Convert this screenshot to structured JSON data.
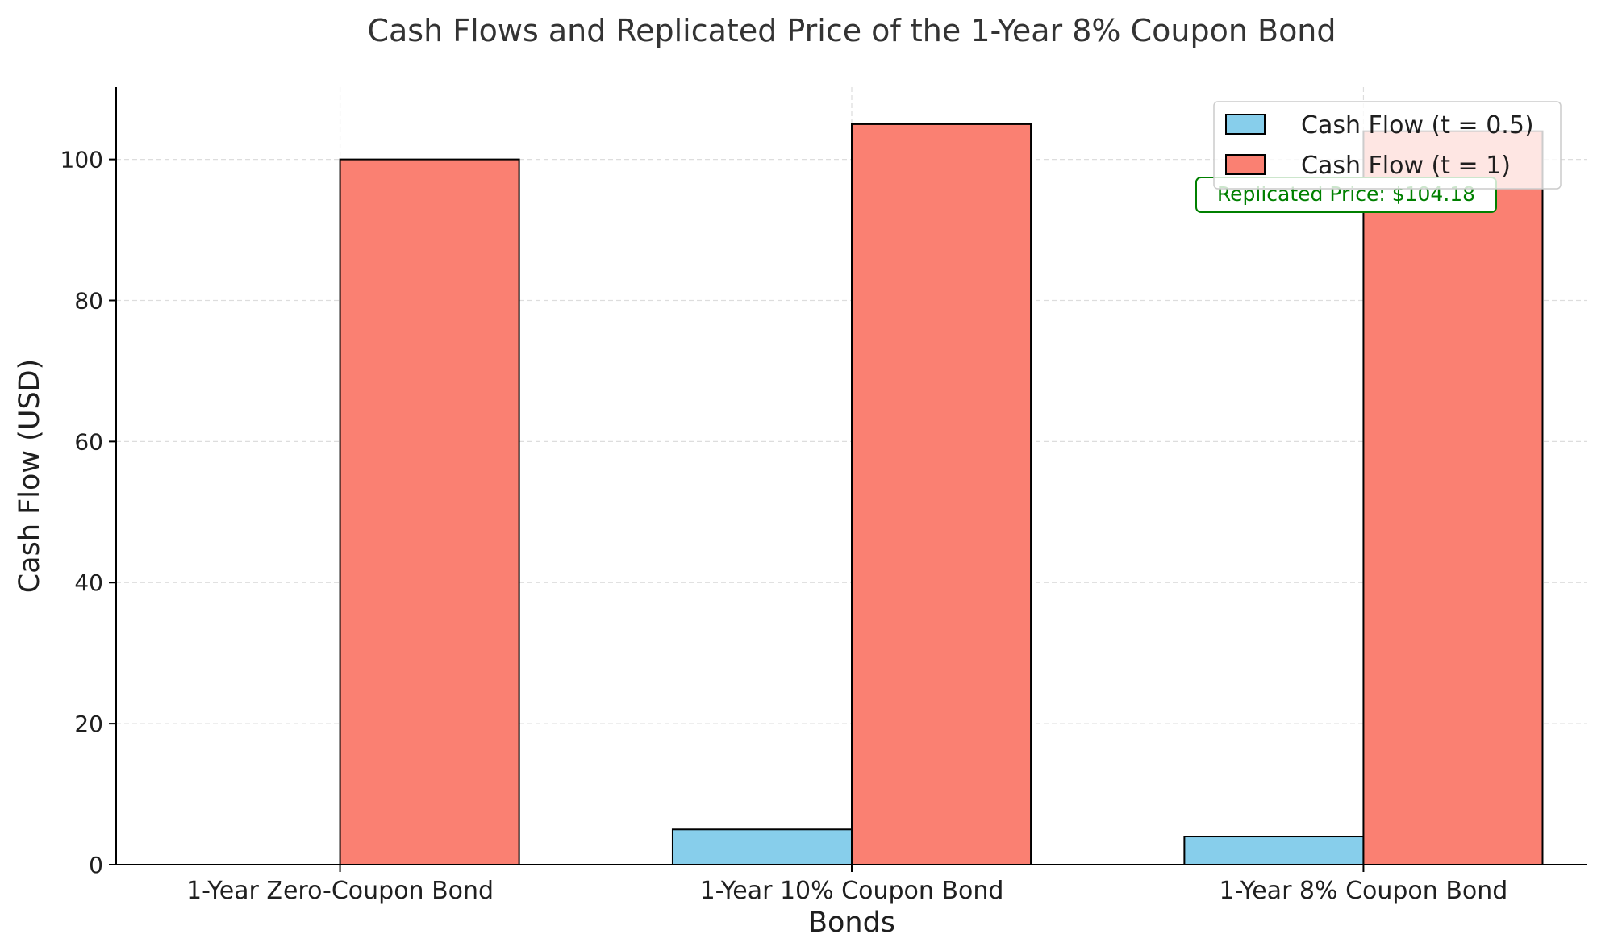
{
  "chart_data": {
    "type": "bar",
    "title": "Cash Flows and Replicated Price of the 1-Year 8% Coupon Bond",
    "xlabel": "Bonds",
    "ylabel": "Cash Flow (USD)",
    "categories": [
      "1-Year Zero-Coupon Bond",
      "1-Year 10% Coupon Bond",
      "1-Year 8% Coupon Bond"
    ],
    "series": [
      {
        "name": "Cash Flow (t = 0.5)",
        "values": [
          0,
          5,
          4
        ],
        "color": "#87ceeb"
      },
      {
        "name": "Cash Flow (t = 1)",
        "values": [
          100,
          105,
          104
        ],
        "color": "#fa8072"
      }
    ],
    "ylim": [
      0,
      110.25
    ],
    "yticks": [
      0,
      20,
      40,
      60,
      80,
      100
    ],
    "grid": true,
    "legend_position": "top-right",
    "annotation": {
      "text": "Replicated Price: $104.18",
      "category": "1-Year 8% Coupon Bond",
      "color": "#008000"
    }
  }
}
